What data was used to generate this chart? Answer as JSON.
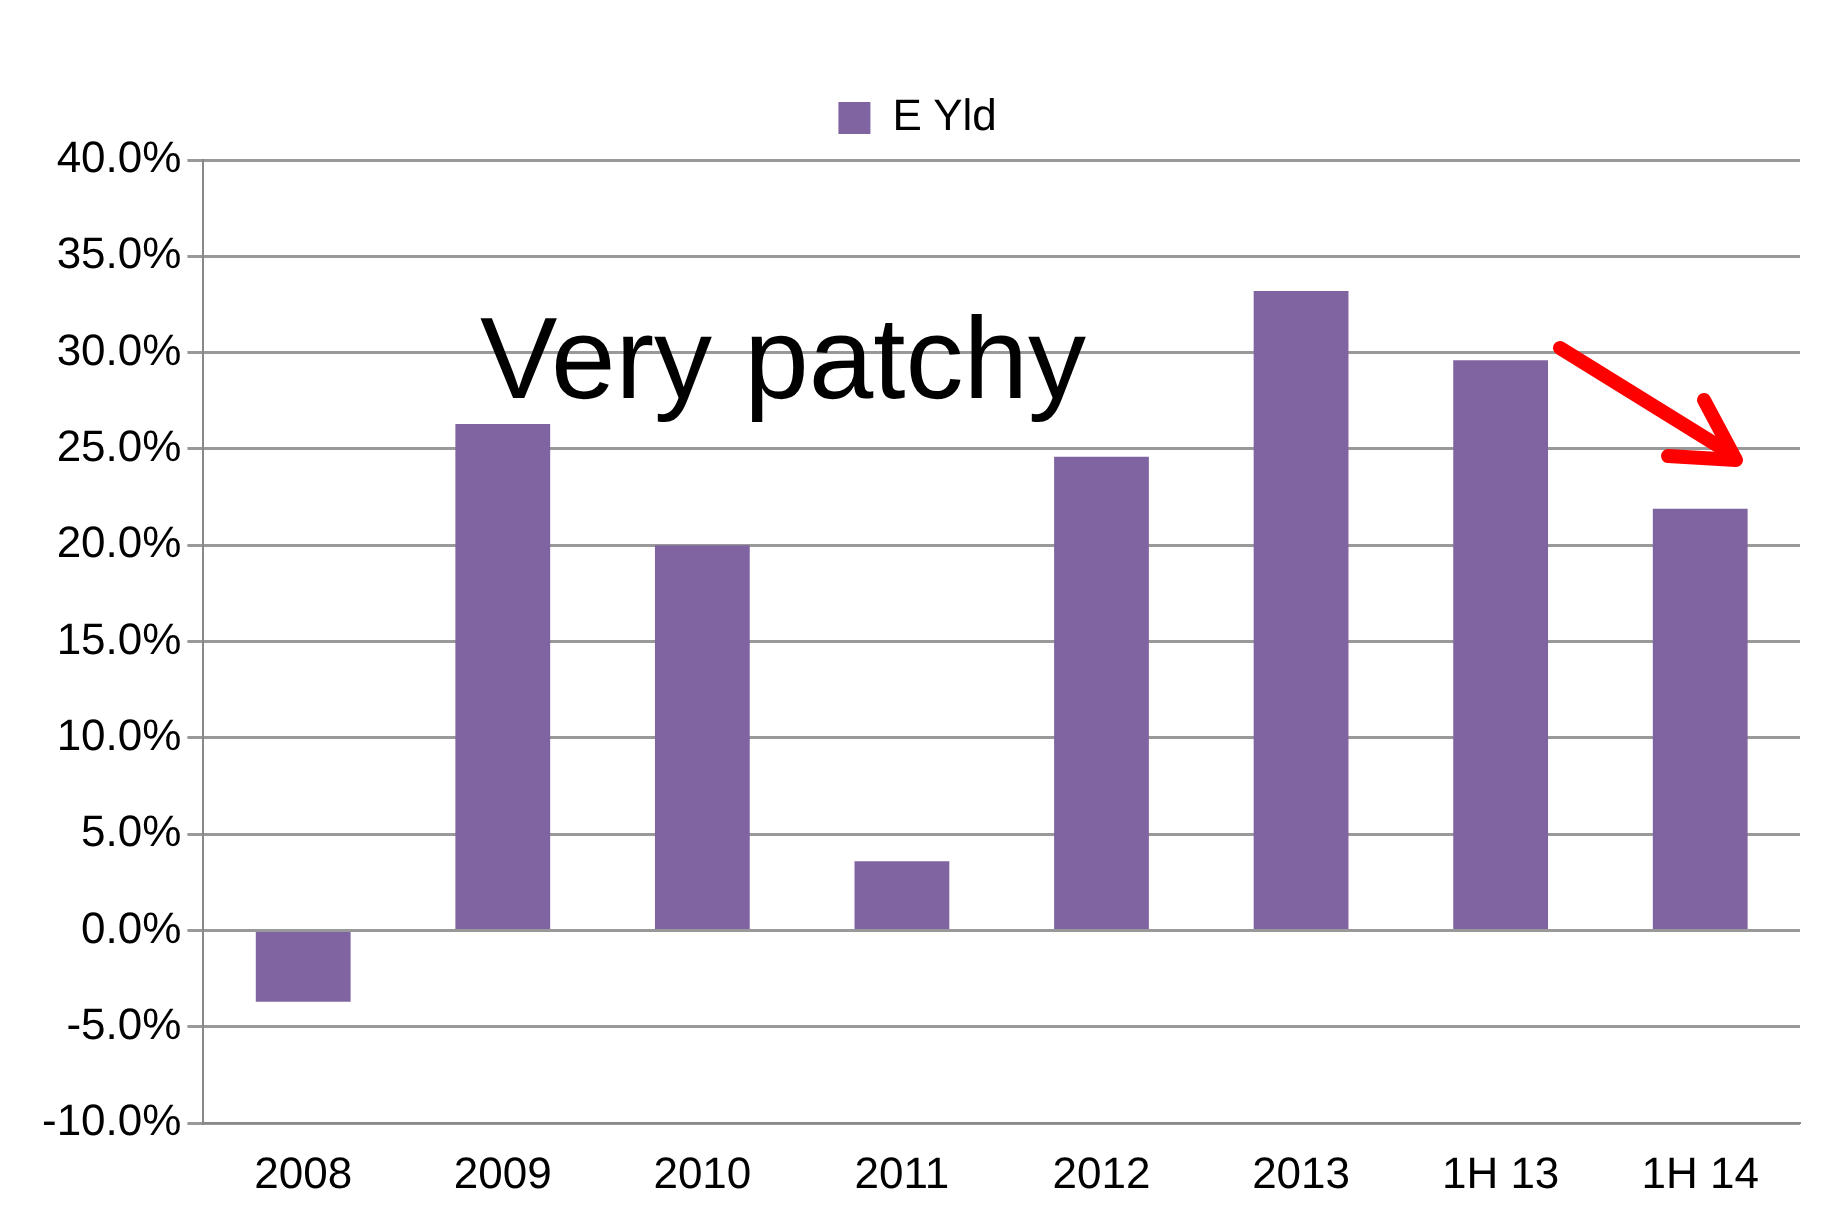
{
  "chart_data": {
    "type": "bar",
    "categories": [
      "2008",
      "2009",
      "2010",
      "2011",
      "2012",
      "2013",
      "1H 13",
      "1H 14"
    ],
    "series": [
      {
        "name": "E Yld",
        "color": "#8064a2",
        "values": [
          -3.7,
          26.3,
          20.0,
          3.6,
          24.6,
          33.2,
          29.6,
          21.9
        ]
      }
    ],
    "ylim": [
      -10,
      40
    ],
    "yticks": [
      {
        "value": -10,
        "label": "-10.0%"
      },
      {
        "value": -5,
        "label": "-5.0%"
      },
      {
        "value": 0,
        "label": "0.0%"
      },
      {
        "value": 5,
        "label": "5.0%"
      },
      {
        "value": 10,
        "label": "10.0%"
      },
      {
        "value": 15,
        "label": "15.0%"
      },
      {
        "value": 20,
        "label": "20.0%"
      },
      {
        "value": 25,
        "label": "25.0%"
      },
      {
        "value": 30,
        "label": "30.0%"
      },
      {
        "value": 35,
        "label": "35.0%"
      },
      {
        "value": 40,
        "label": "40.0%"
      }
    ],
    "grid": "y",
    "legend": "top",
    "annotations": [
      "Very patchy"
    ]
  }
}
